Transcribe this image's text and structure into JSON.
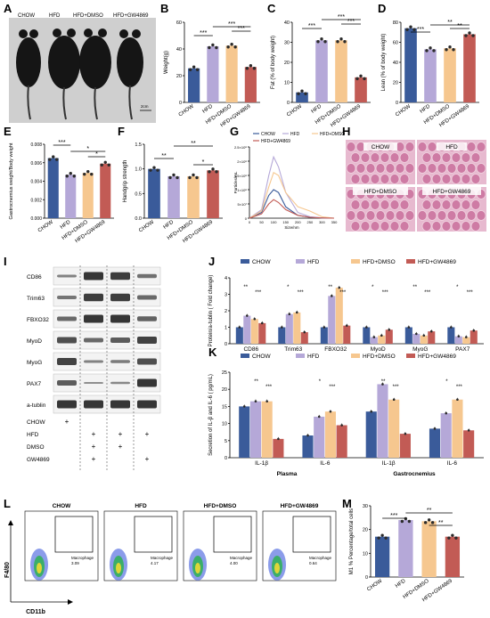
{
  "colors": {
    "chow": "#3a5b9a",
    "hfd": "#b5a8d8",
    "hfd_dmso": "#f6c78f",
    "hfd_gw4869": "#c25b55",
    "dot": "#2b2b2b",
    "histo_bg": "#e7b9cf",
    "histo_fiber": "#c96c9a",
    "blot_bg": "#f3f3f3",
    "band": "#1e1e1e"
  },
  "panel_labels": [
    "A",
    "B",
    "C",
    "D",
    "E",
    "F",
    "G",
    "H",
    "I",
    "J",
    "K",
    "L",
    "M"
  ],
  "groups": [
    "CHOW",
    "HFD",
    "HFD+DMSO",
    "HFD+GW4869"
  ],
  "panelA": {
    "labels": [
      "CHOW",
      "HFD",
      "HFD+DMSO",
      "HFD+GW4869"
    ],
    "scale": "2cm"
  },
  "panelB": {
    "ylabel": "Weight(g)",
    "yticks": [
      "0",
      "20",
      "40",
      "60"
    ],
    "sig": [
      "***",
      "***",
      "***"
    ]
  },
  "panelC": {
    "ylabel": "Fat (% of body weight)",
    "yticks": [
      "0",
      "10",
      "20",
      "30",
      "40"
    ],
    "sig": [
      "***",
      "***",
      "***"
    ]
  },
  "panelD": {
    "ylabel": "Lean (% of body weight)",
    "yticks": [
      "0",
      "20",
      "40",
      "60",
      "80"
    ],
    "sig": [
      "***",
      "**",
      "**"
    ]
  },
  "panelE": {
    "ylabel": "Gastrocnemius weight/Body weight",
    "yticks": [
      "0.000",
      "0.002",
      "0.004",
      "0.006",
      "0.008"
    ],
    "sig": [
      "***",
      "*",
      "*"
    ]
  },
  "panelF": {
    "ylabel": "Handgrip strength",
    "yticks": [
      "0.0",
      "0.5",
      "1.0",
      "1.5"
    ],
    "sig": [
      "**",
      "**",
      "*"
    ]
  },
  "panelG": {
    "legend": [
      "CHOW",
      "HFD",
      "HFD+DMSO",
      "HFD+GW4869"
    ],
    "ylabel": "Particles/mL",
    "xlabel": "Size/nm",
    "yticks": [
      "0",
      "5×10⁷",
      "1×10⁸",
      "1.5×10⁸",
      "2×10⁸",
      "2.5×10⁸"
    ],
    "xticks": [
      "0",
      "50",
      "100",
      "150",
      "200",
      "250",
      "300",
      "350"
    ]
  },
  "panelH": {
    "labels": [
      "CHOW",
      "HFD",
      "HFD+DMSO",
      "HFD+GW4869"
    ]
  },
  "panelI": {
    "proteins": [
      "CD86",
      "Trim63",
      "FBXO32",
      "MyoD",
      "MyoG",
      "PAX7",
      "a-tublin"
    ],
    "conditions": [
      {
        "label": "CHOW",
        "marks": [
          "+",
          "",
          "",
          ""
        ]
      },
      {
        "label": "HFD",
        "marks": [
          "",
          "+",
          "+",
          "+"
        ]
      },
      {
        "label": "DMSO",
        "marks": [
          "",
          "+",
          "+",
          ""
        ]
      },
      {
        "label": "GW4869",
        "marks": [
          "",
          "+",
          "",
          "+"
        ]
      }
    ]
  },
  "panelJ": {
    "legend": [
      "CHOW",
      "HFD",
      "HFD+DMSO",
      "HFD+GW4869"
    ],
    "ylabel": "Protein/a-tublin ( Fold change)",
    "yticks": [
      "0",
      "1",
      "2",
      "3",
      "4"
    ],
    "categories": [
      "CD86",
      "Trim63",
      "FBXO32",
      "MyoD",
      "MyoG",
      "PAX7"
    ]
  },
  "panelK": {
    "legend": [
      "CHOW",
      "HFD",
      "HFD+DMSO",
      "HFD+GW4869"
    ],
    "ylabel": "Secretion of IL-β and IL-6 ( pg/mL)",
    "yticks": [
      "0",
      "5",
      "10",
      "15",
      "20",
      "25"
    ],
    "categories": [
      "IL-1β",
      "IL-6",
      "IL-1β",
      "IL-6"
    ],
    "group_labels": [
      "Plasma",
      "Gastrocnemius"
    ]
  },
  "panelL": {
    "titles": [
      "CHOW",
      "HFD",
      "HFD+DMSO",
      "HFD+GW4869"
    ],
    "gate_label": "Macrophage",
    "gate_values": [
      "3.09",
      "4.17",
      "4.00",
      "0.64"
    ],
    "ylabel": "F4/80",
    "xlabel": "CD11b"
  },
  "panelM": {
    "ylabel": "M1 % Percentage/total cells",
    "yticks": [
      "0",
      "10",
      "20",
      "30"
    ],
    "sig": [
      "***",
      "**",
      "**"
    ]
  },
  "chart_data": [
    {
      "panel": "B",
      "type": "bar",
      "categories": [
        "CHOW",
        "HFD",
        "HFD+DMSO",
        "HFD+GW4869"
      ],
      "values": [
        25.5,
        42,
        42.5,
        26.5
      ],
      "ylabel": "Weight(g)",
      "ylim": [
        0,
        60
      ]
    },
    {
      "panel": "C",
      "type": "bar",
      "categories": [
        "CHOW",
        "HFD",
        "HFD+DMSO",
        "HFD+GW4869"
      ],
      "values": [
        5,
        31,
        31,
        12.5
      ],
      "ylabel": "Fat (% of body weight)",
      "ylim": [
        0,
        40
      ]
    },
    {
      "panel": "D",
      "type": "bar",
      "categories": [
        "CHOW",
        "HFD",
        "HFD+DMSO",
        "HFD+GW4869"
      ],
      "values": [
        74,
        53,
        54,
        68
      ],
      "ylabel": "Lean (% of body weight)",
      "ylim": [
        0,
        80
      ]
    },
    {
      "panel": "E",
      "type": "bar",
      "categories": [
        "CHOW",
        "HFD",
        "HFD+DMSO",
        "HFD+GW4869"
      ],
      "values": [
        0.0065,
        0.0047,
        0.0049,
        0.0059
      ],
      "ylabel": "Gastrocnemius weight/Body weight",
      "ylim": [
        0,
        0.008
      ]
    },
    {
      "panel": "F",
      "type": "bar",
      "categories": [
        "CHOW",
        "HFD",
        "HFD+DMSO",
        "HFD+GW4869"
      ],
      "values": [
        1.0,
        0.85,
        0.85,
        0.97
      ],
      "ylabel": "Handgrip strength",
      "ylim": [
        0,
        1.5
      ]
    },
    {
      "panel": "G",
      "type": "line",
      "xlabel": "Size/nm",
      "ylabel": "Particles/mL",
      "xlim": [
        0,
        350
      ],
      "ylim": [
        0,
        250000000
      ],
      "series": [
        {
          "name": "CHOW",
          "x": [
            0,
            50,
            80,
            100,
            120,
            150,
            200,
            250,
            300,
            350
          ],
          "y": [
            0,
            20000000,
            80000000,
            100000000,
            90000000,
            40000000,
            10000000,
            3000000,
            1000000,
            0
          ]
        },
        {
          "name": "HFD",
          "x": [
            0,
            50,
            80,
            100,
            120,
            150,
            200,
            250,
            300,
            350
          ],
          "y": [
            0,
            30000000,
            150000000,
            215000000,
            180000000,
            90000000,
            20000000,
            5000000,
            1000000,
            0
          ]
        },
        {
          "name": "HFD+DMSO",
          "x": [
            0,
            50,
            80,
            100,
            120,
            150,
            200,
            250,
            300,
            350
          ],
          "y": [
            0,
            25000000,
            110000000,
            160000000,
            150000000,
            90000000,
            40000000,
            25000000,
            5000000,
            0
          ]
        },
        {
          "name": "HFD+GW4869",
          "x": [
            0,
            50,
            80,
            100,
            120,
            150,
            200,
            250,
            300,
            350
          ],
          "y": [
            0,
            15000000,
            50000000,
            65000000,
            55000000,
            30000000,
            10000000,
            3000000,
            1000000,
            0
          ]
        }
      ]
    },
    {
      "panel": "J",
      "type": "bar",
      "categories": [
        "CD86",
        "Trim63",
        "FBXO32",
        "MyoD",
        "MyoG",
        "PAX7"
      ],
      "ylabel": "Protein/a-tublin ( Fold change)",
      "ylim": [
        0,
        4
      ],
      "series": [
        {
          "name": "CHOW",
          "values": [
            1.0,
            1.0,
            1.0,
            1.0,
            1.0,
            1.0
          ]
        },
        {
          "name": "HFD",
          "values": [
            1.7,
            1.8,
            2.9,
            0.4,
            0.6,
            0.45
          ]
        },
        {
          "name": "HFD+DMSO",
          "values": [
            1.5,
            1.9,
            3.4,
            0.5,
            0.5,
            0.4
          ]
        },
        {
          "name": "HFD+GW4869",
          "values": [
            1.25,
            0.7,
            1.1,
            0.85,
            0.75,
            0.8
          ]
        }
      ]
    },
    {
      "panel": "K",
      "type": "bar",
      "categories": [
        "IL-1β",
        "IL-6",
        "IL-1β",
        "IL-6"
      ],
      "ylabel": "Secretion of IL-β and IL-6 ( pg/mL)",
      "ylim": [
        0,
        25
      ],
      "series": [
        {
          "name": "CHOW",
          "values": [
            15,
            6.5,
            13.5,
            8.5
          ]
        },
        {
          "name": "HFD",
          "values": [
            16.5,
            12,
            21.5,
            13
          ]
        },
        {
          "name": "HFD+DMSO",
          "values": [
            16.5,
            13.5,
            17,
            17
          ]
        },
        {
          "name": "HFD+GW4869",
          "values": [
            5.5,
            9.5,
            7,
            8
          ]
        }
      ]
    },
    {
      "panel": "M",
      "type": "bar",
      "categories": [
        "CHOW",
        "HFD",
        "HFD+DMSO",
        "HFD+GW4869"
      ],
      "values": [
        17,
        24,
        23.5,
        17
      ],
      "ylabel": "M1 % Percentage/total cells",
      "ylim": [
        0,
        30
      ]
    }
  ]
}
